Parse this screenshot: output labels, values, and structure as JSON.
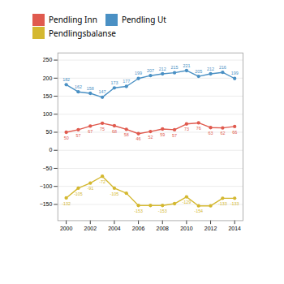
{
  "chart_data": {
    "type": "line",
    "x": [
      2000,
      2001,
      2002,
      2003,
      2004,
      2005,
      2006,
      2007,
      2008,
      2009,
      2010,
      2011,
      2012,
      2013,
      2014
    ],
    "series": [
      {
        "name": "Pendling Inn",
        "color": "#e05a4e",
        "values": [
          50,
          57,
          67,
          75,
          68,
          58,
          46,
          52,
          59,
          57,
          73,
          76,
          63,
          62,
          66
        ]
      },
      {
        "name": "Pendling Ut",
        "color": "#4a90c4",
        "values": [
          182,
          162,
          158,
          147,
          173,
          177,
          199,
          207,
          212,
          215,
          221,
          205,
          212,
          216,
          199
        ]
      },
      {
        "name": "Pendlingsbalanse",
        "color": "#d4b830",
        "values": [
          -132,
          -105,
          -91,
          -72,
          -105,
          -119,
          -153,
          -153,
          -153,
          -148,
          -129,
          -154,
          -154,
          -133,
          -133
        ],
        "value_labels": [
          "-132",
          "-105",
          "-91",
          "-72",
          "-105",
          null,
          "-153",
          null,
          "-153",
          null,
          "-129",
          "-154",
          null,
          "-133",
          "-133"
        ]
      }
    ],
    "xlim": [
      1999.3,
      2014.7
    ],
    "xticks": [
      2000,
      2002,
      2004,
      2006,
      2008,
      2010,
      2012,
      2014
    ],
    "ylim": [
      -195,
      270
    ],
    "yticks": [
      -150,
      -100,
      -50,
      0,
      50,
      100,
      150,
      200,
      250
    ],
    "grid": true,
    "legend": "top",
    "marker": "circle",
    "data_labels": true
  }
}
